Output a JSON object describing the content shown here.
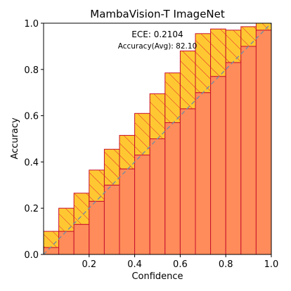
{
  "chart_data": {
    "type": "bar",
    "title": "MambaVision-T  ImageNet",
    "xlabel": "Confidence",
    "ylabel": "Accuracy",
    "xlim": [
      0,
      1
    ],
    "ylim": [
      0,
      1
    ],
    "xticks": [
      "0.2",
      "0.4",
      "0.6",
      "0.8",
      "1.0"
    ],
    "yticks": [
      "0.0",
      "0.2",
      "0.4",
      "0.6",
      "0.8",
      "1.0"
    ],
    "bin_edges": [
      0.0,
      0.0667,
      0.1333,
      0.2,
      0.2667,
      0.3333,
      0.4,
      0.4667,
      0.5333,
      0.6,
      0.6667,
      0.7333,
      0.8,
      0.8667,
      0.9333,
      1.0
    ],
    "series": [
      {
        "values": [
          0.03,
          0.1,
          0.13,
          0.23,
          0.3,
          0.37,
          0.43,
          0.5,
          0.57,
          0.63,
          0.7,
          0.77,
          0.83,
          0.9,
          0.97
        ]
      },
      {
        "values": [
          0.1,
          0.2,
          0.265,
          0.365,
          0.455,
          0.515,
          0.61,
          0.695,
          0.785,
          0.88,
          0.955,
          0.975,
          0.97,
          0.985,
          1.0
        ]
      }
    ],
    "annotations": [
      "ECE: 0.2104",
      "Accuracy(Avg): 82.10"
    ],
    "reference_line": "diagonal",
    "colors": {
      "accuracy_bar": "#ff8c5a",
      "gap_fill": "#ffc832",
      "gap_hatch": "#e0202a",
      "bar_edge": "#c8102e",
      "diagonal": "#7d8c9c"
    }
  }
}
